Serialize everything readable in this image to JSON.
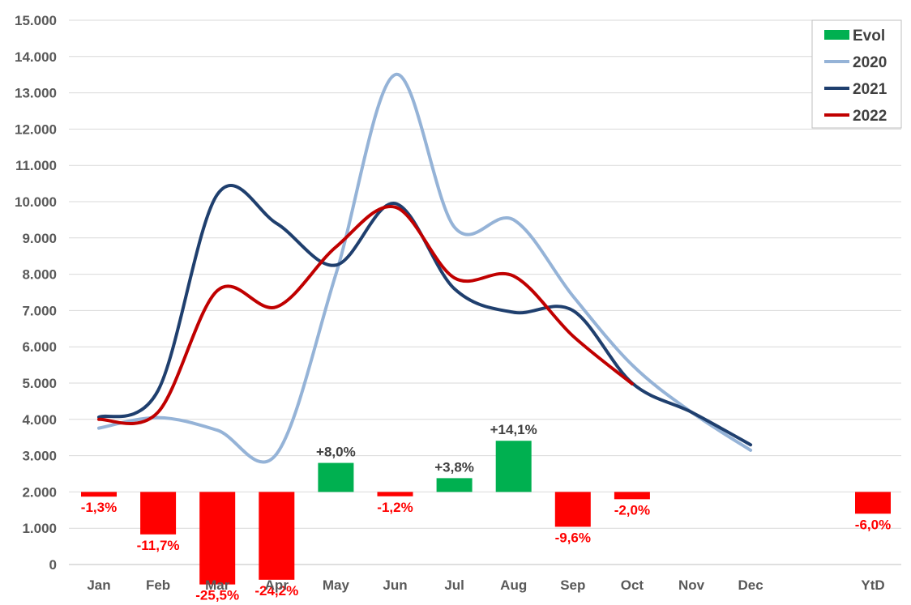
{
  "chart_data": {
    "type": "line",
    "categories": [
      "Jan",
      "Feb",
      "Mar",
      "Apr",
      "May",
      "Jun",
      "Jul",
      "Aug",
      "Sep",
      "Oct",
      "Nov",
      "Dec",
      "YtD"
    ],
    "y_ticks": [
      "0",
      "1.000",
      "2.000",
      "3.000",
      "4.000",
      "5.000",
      "6.000",
      "7.000",
      "8.000",
      "9.000",
      "10.000",
      "11.000",
      "12.000",
      "13.000",
      "14.000",
      "15.000"
    ],
    "ylim": [
      0,
      15000
    ],
    "grid": true,
    "legend_placement": "top-right",
    "series": [
      {
        "name": "2020",
        "color": "#95b3d7",
        "values": [
          3760,
          4050,
          3700,
          3050,
          8000,
          13500,
          9300,
          9500,
          7400,
          5500,
          4200,
          3150,
          null
        ]
      },
      {
        "name": "2021",
        "color": "#1f3f6e",
        "values": [
          4060,
          4800,
          10200,
          9400,
          8250,
          9950,
          7600,
          6950,
          7000,
          5000,
          4200,
          3300,
          null
        ]
      },
      {
        "name": "2022",
        "color": "#c00000",
        "values": [
          4000,
          4200,
          7550,
          7100,
          8750,
          9850,
          7900,
          7950,
          6300,
          4980,
          null,
          null,
          null
        ]
      }
    ],
    "evol": {
      "name": "Evol",
      "baseline": 2000,
      "positive_color": "#00b050",
      "negative_color": "#ff0000",
      "bars": [
        {
          "category": "Jan",
          "pct": -1.3,
          "label": "-1,3%"
        },
        {
          "category": "Feb",
          "pct": -11.7,
          "label": "-11,7%"
        },
        {
          "category": "Mar",
          "pct": -25.5,
          "label": "-25,5%"
        },
        {
          "category": "Apr",
          "pct": -24.2,
          "label": "-24,2%"
        },
        {
          "category": "May",
          "pct": 8.0,
          "label": "+8,0%"
        },
        {
          "category": "Jun",
          "pct": -1.2,
          "label": "-1,2%"
        },
        {
          "category": "Jul",
          "pct": 3.8,
          "label": "+3,8%"
        },
        {
          "category": "Aug",
          "pct": 14.1,
          "label": "+14,1%"
        },
        {
          "category": "Sep",
          "pct": -9.6,
          "label": "-9,6%"
        },
        {
          "category": "Oct",
          "pct": -2.0,
          "label": "-2,0%"
        },
        {
          "category": "YtD",
          "pct": -6.0,
          "label": "-6,0%"
        }
      ]
    },
    "legend": [
      "Evol",
      "2020",
      "2021",
      "2022"
    ]
  }
}
